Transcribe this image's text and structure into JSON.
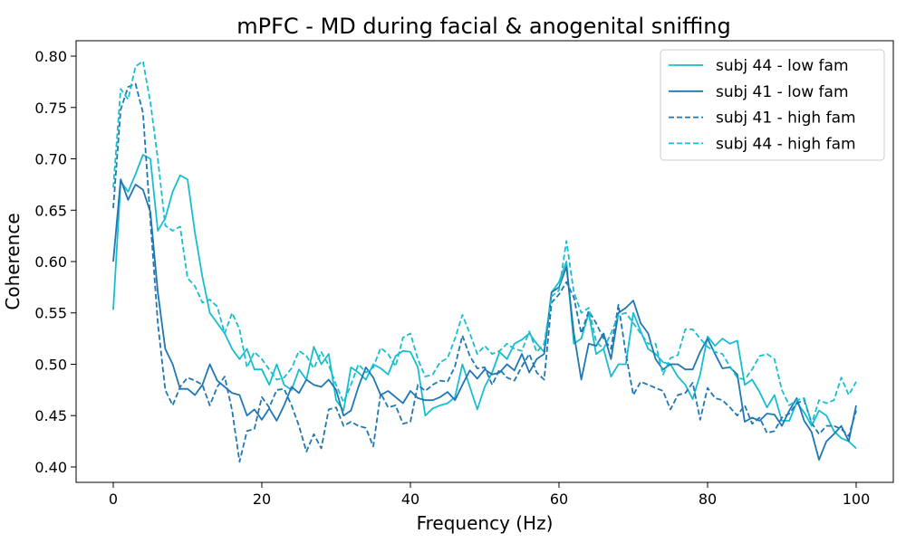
{
  "chart_data": {
    "type": "line",
    "title": "mPFC - MD during facial & anogenital sniffing",
    "xlabel": "Frequency (Hz)",
    "ylabel": "Coherence",
    "xlim": [
      -5,
      105
    ],
    "ylim": [
      0.385,
      0.815
    ],
    "xticks": [
      0,
      20,
      40,
      60,
      80,
      100
    ],
    "yticks": [
      0.4,
      0.45,
      0.5,
      0.55,
      0.6,
      0.65,
      0.7,
      0.75,
      0.8
    ],
    "grid": false,
    "legend_position": "top-right",
    "series": [
      {
        "name": "subj 44 - low fam",
        "color": "#17becf",
        "dash": "solid",
        "x": [
          0,
          1,
          2,
          3,
          4,
          5,
          6,
          7,
          8,
          9,
          10,
          11,
          12,
          13,
          14,
          15,
          16,
          17,
          18,
          19,
          20,
          21,
          22,
          23,
          24,
          25,
          26,
          27,
          28,
          29,
          30,
          31,
          32,
          33,
          34,
          35,
          36,
          37,
          38,
          39,
          40,
          41,
          42,
          43,
          44,
          45,
          46,
          47,
          48,
          49,
          50,
          51,
          52,
          53,
          54,
          55,
          56,
          57,
          58,
          59,
          60,
          61,
          62,
          63,
          64,
          65,
          66,
          67,
          68,
          69,
          70,
          71,
          72,
          73,
          74,
          75,
          76,
          77,
          78,
          79,
          80,
          81,
          82,
          83,
          84,
          85,
          86,
          87,
          88,
          89,
          90,
          91,
          92,
          93,
          94,
          95,
          96,
          97,
          98,
          99,
          100
        ],
        "y": [
          0.553,
          0.678,
          0.668,
          0.685,
          0.704,
          0.7,
          0.63,
          0.642,
          0.668,
          0.684,
          0.68,
          0.628,
          0.585,
          0.55,
          0.54,
          0.53,
          0.515,
          0.505,
          0.515,
          0.495,
          0.495,
          0.48,
          0.5,
          0.48,
          0.475,
          0.495,
          0.485,
          0.517,
          0.5,
          0.51,
          0.465,
          0.455,
          0.497,
          0.492,
          0.485,
          0.5,
          0.496,
          0.49,
          0.508,
          0.513,
          0.512,
          0.497,
          0.45,
          0.457,
          0.46,
          0.462,
          0.468,
          0.5,
          0.478,
          0.456,
          0.478,
          0.492,
          0.512,
          0.505,
          0.52,
          0.524,
          0.53,
          0.52,
          0.512,
          0.57,
          0.58,
          0.6,
          0.52,
          0.525,
          0.55,
          0.51,
          0.515,
          0.488,
          0.5,
          0.5,
          0.55,
          0.532,
          0.515,
          0.51,
          0.502,
          0.5,
          0.488,
          0.48,
          0.466,
          0.49,
          0.527,
          0.518,
          0.525,
          0.52,
          0.523,
          0.48,
          0.485,
          0.473,
          0.458,
          0.47,
          0.445,
          0.445,
          0.463,
          0.453,
          0.44,
          0.455,
          0.45,
          0.435,
          0.428,
          0.425,
          0.418
        ]
      },
      {
        "name": "subj 41 - low fam",
        "color": "#1f77b4",
        "dash": "solid",
        "x": [
          0,
          1,
          2,
          3,
          4,
          5,
          6,
          7,
          8,
          9,
          10,
          11,
          12,
          13,
          14,
          15,
          16,
          17,
          18,
          19,
          20,
          21,
          22,
          23,
          24,
          25,
          26,
          27,
          28,
          29,
          30,
          31,
          32,
          33,
          34,
          35,
          36,
          37,
          38,
          39,
          40,
          41,
          42,
          43,
          44,
          45,
          46,
          47,
          48,
          49,
          50,
          51,
          52,
          53,
          54,
          55,
          56,
          57,
          58,
          59,
          60,
          61,
          62,
          63,
          64,
          65,
          66,
          67,
          68,
          69,
          70,
          71,
          72,
          73,
          74,
          75,
          76,
          77,
          78,
          79,
          80,
          81,
          82,
          83,
          84,
          85,
          86,
          87,
          88,
          89,
          90,
          91,
          92,
          93,
          94,
          95,
          96,
          97,
          98,
          99,
          100
        ],
        "y": [
          0.6,
          0.68,
          0.66,
          0.675,
          0.67,
          0.648,
          0.57,
          0.515,
          0.5,
          0.476,
          0.476,
          0.47,
          0.48,
          0.5,
          0.484,
          0.478,
          0.472,
          0.47,
          0.45,
          0.456,
          0.446,
          0.457,
          0.445,
          0.46,
          0.478,
          0.472,
          0.485,
          0.48,
          0.478,
          0.485,
          0.475,
          0.45,
          0.455,
          0.478,
          0.497,
          0.487,
          0.47,
          0.474,
          0.468,
          0.462,
          0.474,
          0.467,
          0.465,
          0.465,
          0.468,
          0.473,
          0.465,
          0.48,
          0.494,
          0.486,
          0.495,
          0.49,
          0.492,
          0.5,
          0.494,
          0.51,
          0.492,
          0.505,
          0.51,
          0.57,
          0.575,
          0.595,
          0.53,
          0.485,
          0.52,
          0.518,
          0.53,
          0.505,
          0.55,
          0.555,
          0.562,
          0.54,
          0.53,
          0.505,
          0.495,
          0.5,
          0.5,
          0.495,
          0.495,
          0.512,
          0.525,
          0.51,
          0.496,
          0.497,
          0.49,
          0.444,
          0.448,
          0.445,
          0.452,
          0.451,
          0.44,
          0.455,
          0.467,
          0.445,
          0.434,
          0.407,
          0.425,
          0.432,
          0.44,
          0.425,
          0.46
        ]
      },
      {
        "name": "subj 41 - high fam",
        "color": "#1f77b4",
        "dash": "dashed",
        "x": [
          0,
          1,
          2,
          3,
          4,
          5,
          6,
          7,
          8,
          9,
          10,
          11,
          12,
          13,
          14,
          15,
          16,
          17,
          18,
          19,
          20,
          21,
          22,
          23,
          24,
          25,
          26,
          27,
          28,
          29,
          30,
          31,
          32,
          33,
          34,
          35,
          36,
          37,
          38,
          39,
          40,
          41,
          42,
          43,
          44,
          45,
          46,
          47,
          48,
          49,
          50,
          51,
          52,
          53,
          54,
          55,
          56,
          57,
          58,
          59,
          60,
          61,
          62,
          63,
          64,
          65,
          66,
          67,
          68,
          69,
          70,
          71,
          72,
          73,
          74,
          75,
          76,
          77,
          78,
          79,
          80,
          81,
          82,
          83,
          84,
          85,
          86,
          87,
          88,
          89,
          90,
          91,
          92,
          93,
          94,
          95,
          96,
          97,
          98,
          99,
          100
        ],
        "y": [
          0.652,
          0.748,
          0.77,
          0.773,
          0.745,
          0.64,
          0.54,
          0.475,
          0.46,
          0.478,
          0.487,
          0.484,
          0.48,
          0.46,
          0.478,
          0.488,
          0.455,
          0.405,
          0.435,
          0.437,
          0.468,
          0.458,
          0.475,
          0.476,
          0.46,
          0.44,
          0.415,
          0.432,
          0.418,
          0.456,
          0.458,
          0.44,
          0.444,
          0.44,
          0.438,
          0.42,
          0.472,
          0.458,
          0.46,
          0.442,
          0.444,
          0.48,
          0.474,
          0.48,
          0.484,
          0.483,
          0.498,
          0.528,
          0.508,
          0.496,
          0.497,
          0.48,
          0.495,
          0.487,
          0.484,
          0.498,
          0.51,
          0.492,
          0.485,
          0.56,
          0.568,
          0.58,
          0.565,
          0.53,
          0.552,
          0.54,
          0.525,
          0.515,
          0.558,
          0.51,
          0.47,
          0.483,
          0.48,
          0.477,
          0.474,
          0.456,
          0.47,
          0.472,
          0.482,
          0.446,
          0.477,
          0.467,
          0.465,
          0.458,
          0.45,
          0.46,
          0.442,
          0.448,
          0.433,
          0.435,
          0.448,
          0.452,
          0.462,
          0.465,
          0.443,
          0.432,
          0.44,
          0.44,
          0.437,
          0.43,
          0.455
        ]
      },
      {
        "name": "subj 44 - high fam",
        "color": "#17becf",
        "dash": "dashed",
        "x": [
          0,
          1,
          2,
          3,
          4,
          5,
          6,
          7,
          8,
          9,
          10,
          11,
          12,
          13,
          14,
          15,
          16,
          17,
          18,
          19,
          20,
          21,
          22,
          23,
          24,
          25,
          26,
          27,
          28,
          29,
          30,
          31,
          32,
          33,
          34,
          35,
          36,
          37,
          38,
          39,
          40,
          41,
          42,
          43,
          44,
          45,
          46,
          47,
          48,
          49,
          50,
          51,
          52,
          53,
          54,
          55,
          56,
          57,
          58,
          59,
          60,
          61,
          62,
          63,
          64,
          65,
          66,
          67,
          68,
          69,
          70,
          71,
          72,
          73,
          74,
          75,
          76,
          77,
          78,
          79,
          80,
          81,
          82,
          83,
          84,
          85,
          86,
          87,
          88,
          89,
          90,
          91,
          92,
          93,
          94,
          95,
          96,
          97,
          98,
          99,
          100
        ],
        "y": [
          0.672,
          0.768,
          0.758,
          0.79,
          0.795,
          0.755,
          0.7,
          0.635,
          0.63,
          0.634,
          0.584,
          0.576,
          0.56,
          0.563,
          0.556,
          0.53,
          0.55,
          0.534,
          0.497,
          0.512,
          0.505,
          0.495,
          0.485,
          0.487,
          0.496,
          0.513,
          0.508,
          0.496,
          0.512,
          0.499,
          0.48,
          0.463,
          0.48,
          0.5,
          0.492,
          0.497,
          0.516,
          0.51,
          0.498,
          0.526,
          0.53,
          0.505,
          0.488,
          0.49,
          0.502,
          0.506,
          0.525,
          0.548,
          0.53,
          0.51,
          0.518,
          0.51,
          0.513,
          0.52,
          0.515,
          0.513,
          0.532,
          0.512,
          0.52,
          0.566,
          0.572,
          0.62,
          0.57,
          0.55,
          0.555,
          0.522,
          0.515,
          0.53,
          0.548,
          0.55,
          0.54,
          0.53,
          0.52,
          0.52,
          0.49,
          0.506,
          0.509,
          0.534,
          0.534,
          0.525,
          0.517,
          0.512,
          0.51,
          0.498,
          0.487,
          0.485,
          0.495,
          0.508,
          0.51,
          0.505,
          0.475,
          0.46,
          0.465,
          0.467,
          0.442,
          0.465,
          0.462,
          0.465,
          0.487,
          0.47,
          0.483
        ]
      }
    ]
  }
}
